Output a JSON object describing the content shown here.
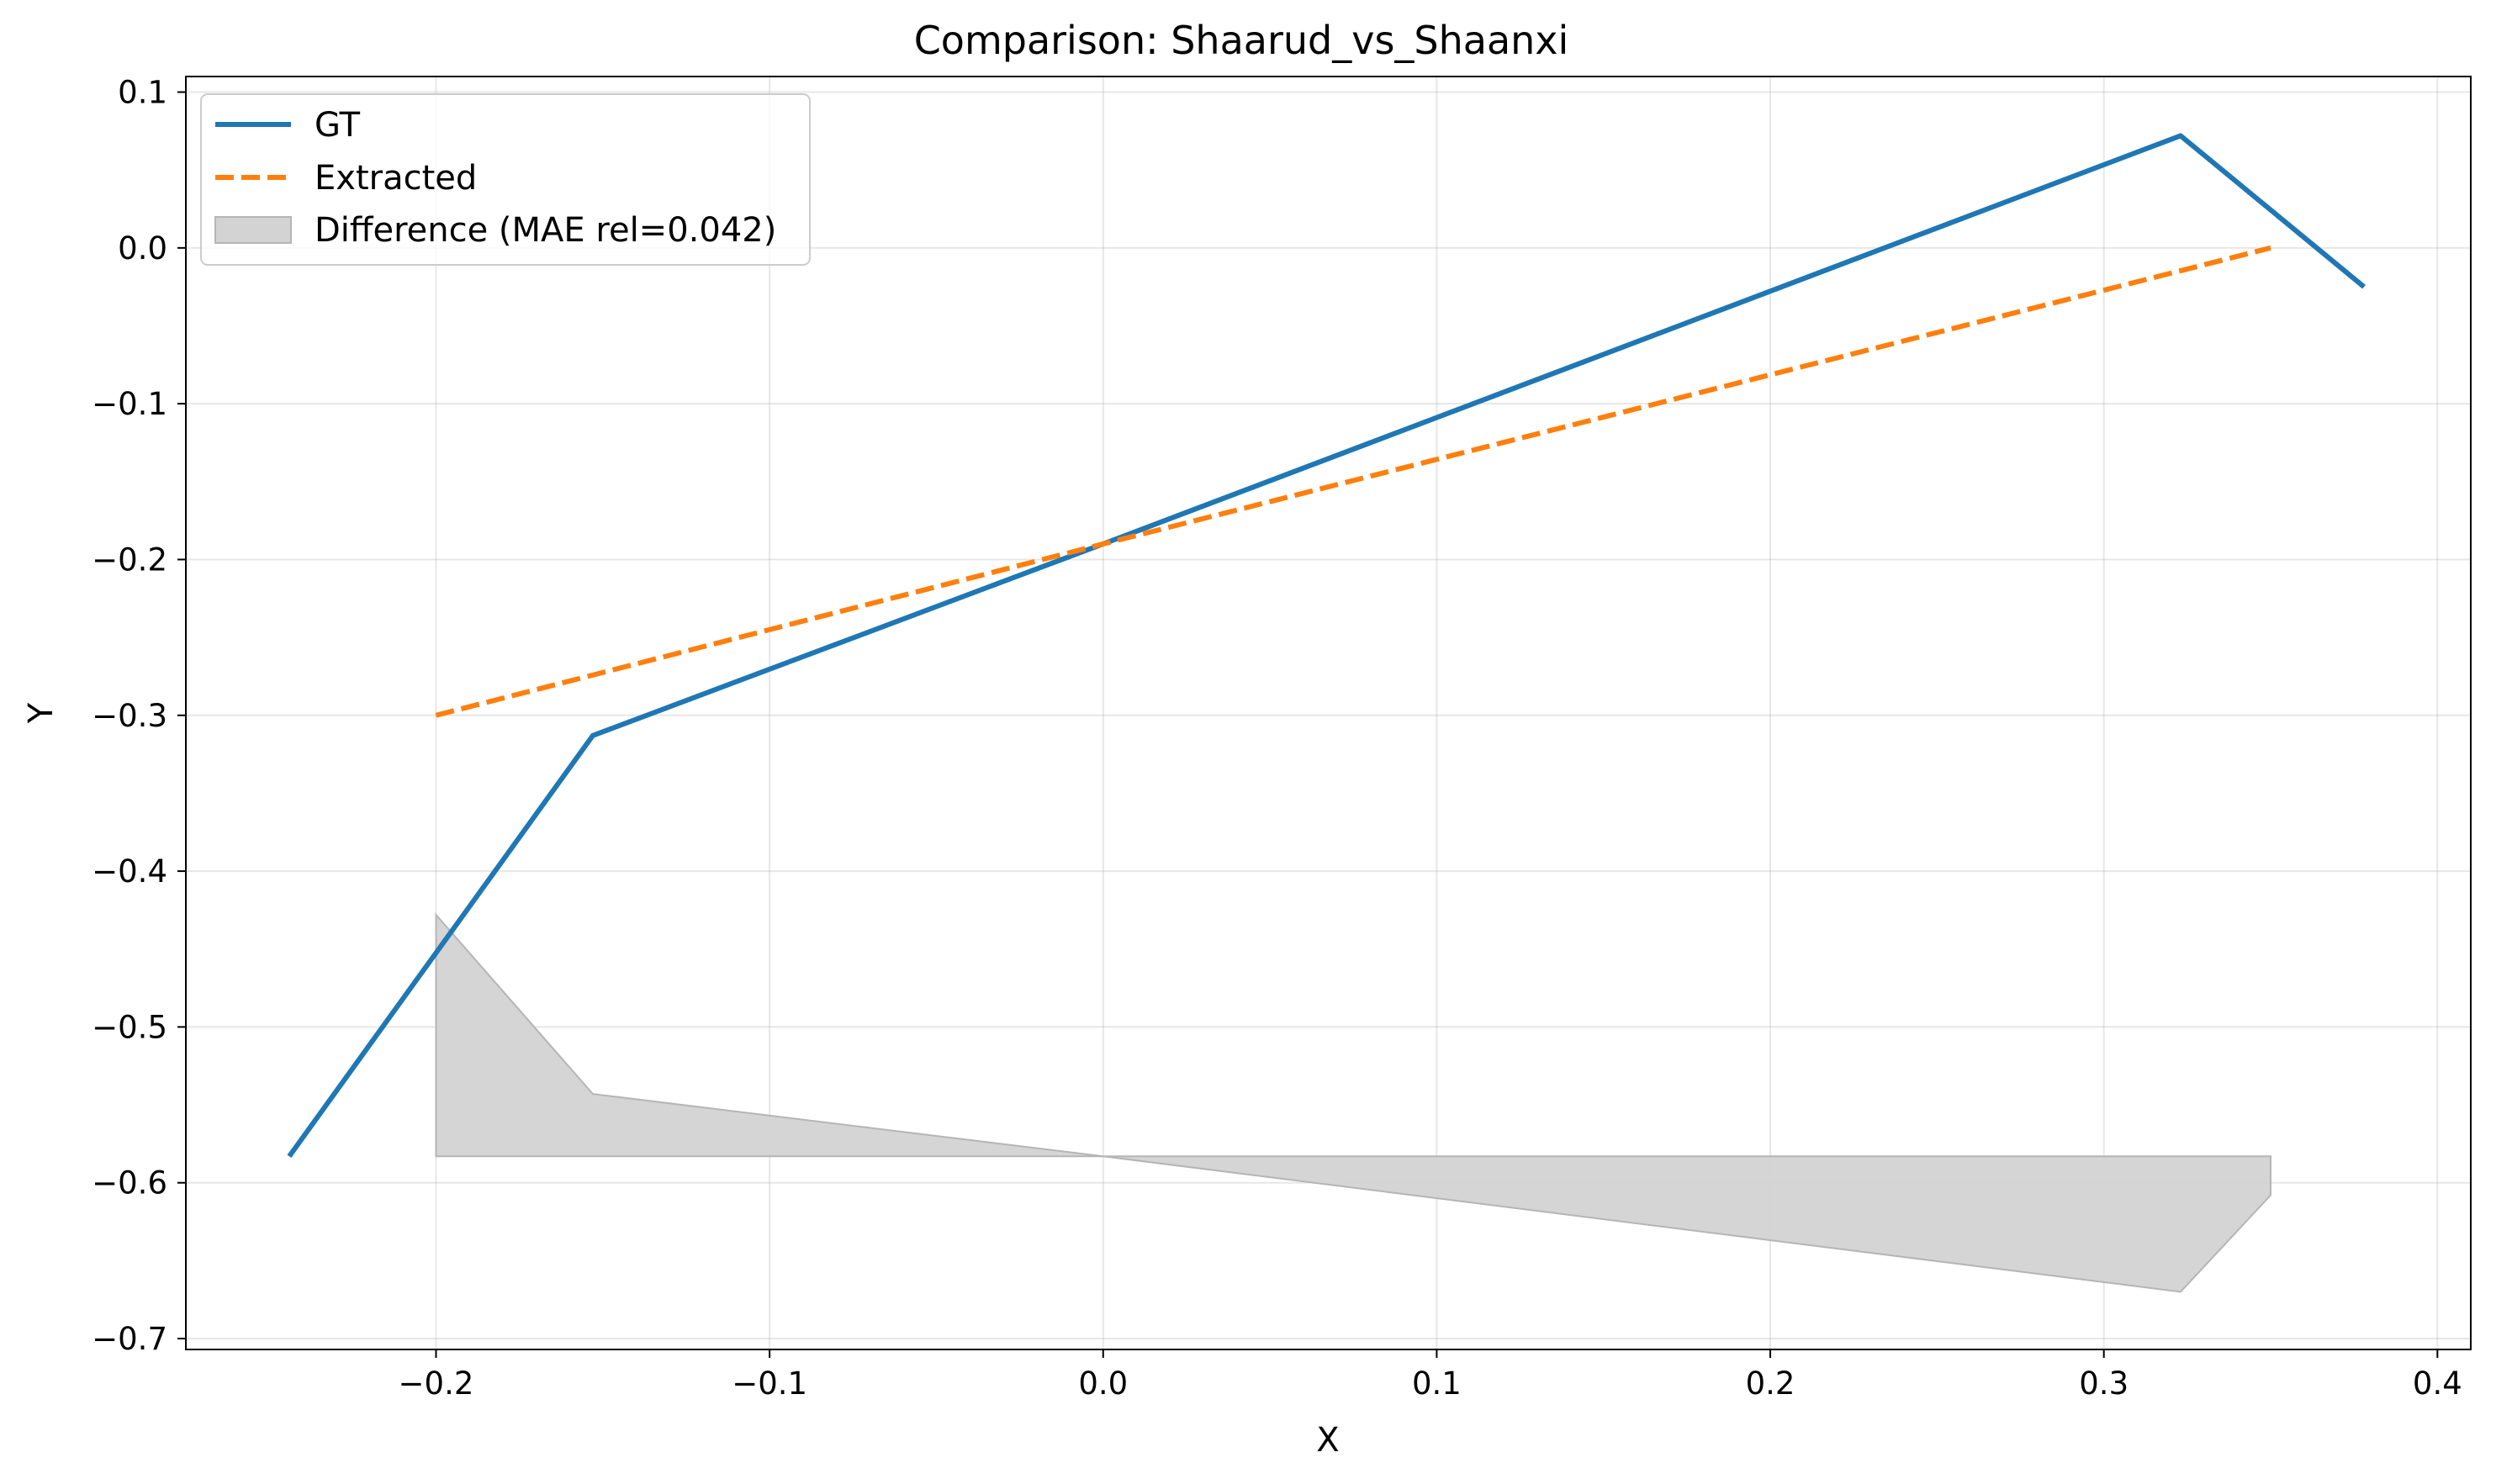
{
  "chart_data": {
    "type": "line",
    "title": "Comparison: Shaarud_vs_Shaanxi",
    "xlabel": "X",
    "ylabel": "Y",
    "xlim": [
      -0.275,
      0.41
    ],
    "ylim": [
      -0.707,
      0.11
    ],
    "xticks": [
      -0.2,
      -0.1,
      0.0,
      0.1,
      0.2,
      0.3,
      0.4
    ],
    "xtick_labels": [
      "−0.2",
      "−0.1",
      "0.0",
      "0.1",
      "0.2",
      "0.3",
      "0.4"
    ],
    "yticks": [
      0.1,
      0.0,
      -0.1,
      -0.2,
      -0.3,
      -0.4,
      -0.5,
      -0.6,
      -0.7
    ],
    "ytick_labels": [
      "0.1",
      "0.0",
      "−0.1",
      "−0.2",
      "−0.3",
      "−0.4",
      "−0.5",
      "−0.6",
      "−0.7"
    ],
    "grid": true,
    "legend_position": "top-left",
    "series": [
      {
        "name": "GT",
        "style": "solid",
        "color": "#1f77b4",
        "x": [
          -0.244,
          -0.153,
          0.0,
          0.323,
          0.378
        ],
        "y": [
          -0.583,
          -0.313,
          -0.19,
          0.072,
          -0.025
        ]
      },
      {
        "name": "Extracted",
        "style": "dashed",
        "color": "#ff7f0e",
        "x": [
          -0.2,
          0.0,
          0.35
        ],
        "y": [
          -0.3,
          -0.19,
          0.0
        ]
      }
    ],
    "difference": {
      "name": "Difference (MAE rel=0.042)",
      "color": "#d3d3d3",
      "baseline": -0.583,
      "x": [
        -0.2,
        -0.153,
        0.0,
        0.323,
        0.35
      ],
      "y": [
        -0.428,
        -0.543,
        -0.583,
        -0.67,
        -0.608
      ]
    }
  }
}
